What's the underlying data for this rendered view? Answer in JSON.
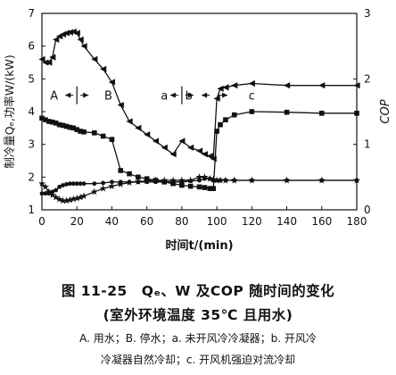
{
  "chart_data": {
    "type": "line",
    "x": [
      0,
      2,
      4,
      6,
      8,
      10,
      12,
      14,
      16,
      18,
      20,
      22,
      24,
      30,
      35,
      40,
      45,
      50,
      55,
      60,
      65,
      70,
      75,
      80,
      85,
      90,
      93,
      96,
      98,
      100,
      102,
      105,
      110,
      120,
      140,
      160,
      180
    ],
    "xlabel": "时间t/(min)",
    "ylabel_left": "制冷量Qₑ,功率W/(kW)",
    "ylabel_right": "COP",
    "xlim": [
      0,
      180
    ],
    "ylim_left": [
      1,
      7
    ],
    "ylim_right": [
      0,
      3
    ],
    "xticks": [
      "0",
      "20",
      "40",
      "60",
      "80",
      "100",
      "120",
      "140",
      "160",
      "180"
    ],
    "yticks_left": [
      "1",
      "2",
      "3",
      "4",
      "5",
      "6",
      "7"
    ],
    "yticks_right": [
      "0",
      "1",
      "2",
      "3"
    ],
    "series": [
      {
        "marker": "triangle-left",
        "axis": "right",
        "values": [
          2.3,
          2.25,
          2.25,
          2.33,
          2.6,
          2.65,
          2.68,
          2.7,
          2.71,
          2.72,
          2.7,
          2.6,
          2.5,
          2.3,
          2.15,
          1.95,
          1.6,
          1.35,
          1.25,
          1.15,
          1.05,
          0.95,
          0.85,
          1.05,
          0.95,
          0.9,
          0.85,
          0.82,
          0.78,
          1.7,
          1.85,
          1.87,
          1.9,
          1.93,
          1.9,
          1.9,
          1.9
        ]
      },
      {
        "marker": "square",
        "axis": "left",
        "values": [
          3.8,
          3.75,
          3.7,
          3.68,
          3.65,
          3.6,
          3.58,
          3.55,
          3.52,
          3.5,
          3.45,
          3.4,
          3.38,
          3.35,
          3.25,
          3.15,
          2.2,
          2.1,
          2.0,
          1.95,
          1.9,
          1.85,
          1.8,
          1.75,
          1.72,
          1.7,
          1.68,
          1.65,
          1.65,
          3.4,
          3.6,
          3.75,
          3.9,
          4.0,
          3.98,
          3.95,
          3.95
        ]
      },
      {
        "marker": "star",
        "axis": "left",
        "values": [
          1.8,
          1.7,
          1.55,
          1.45,
          1.38,
          1.32,
          1.28,
          1.28,
          1.3,
          1.33,
          1.35,
          1.38,
          1.42,
          1.55,
          1.65,
          1.72,
          1.78,
          1.83,
          1.86,
          1.88,
          1.9,
          1.9,
          1.9,
          1.9,
          1.9,
          2.0,
          2.0,
          1.95,
          1.92,
          1.9,
          1.9,
          1.9,
          1.9,
          1.9,
          1.9,
          1.9,
          1.9
        ]
      },
      {
        "marker": "circle",
        "axis": "left",
        "values": [
          1.5,
          1.5,
          1.5,
          1.55,
          1.6,
          1.7,
          1.75,
          1.78,
          1.8,
          1.8,
          1.8,
          1.8,
          1.8,
          1.8,
          1.82,
          1.85,
          1.85,
          1.85,
          1.85,
          1.85,
          1.85,
          1.85,
          1.85,
          1.85,
          1.88,
          1.9,
          1.95,
          1.95,
          1.9,
          1.9,
          1.9,
          1.9,
          1.9,
          1.9,
          1.9,
          1.9,
          1.9
        ]
      }
    ],
    "annotations": [
      {
        "text": "A",
        "x": 7,
        "y": 4.5,
        "axis": "left"
      },
      {
        "text": "B",
        "x": 38,
        "y": 4.5,
        "axis": "left"
      },
      {
        "text": "a",
        "x": 70,
        "y": 4.5,
        "axis": "left"
      },
      {
        "text": "b",
        "x": 84,
        "y": 4.5,
        "axis": "left"
      },
      {
        "text": "c",
        "x": 120,
        "y": 4.5,
        "axis": "left"
      }
    ],
    "phase_divider_x": [
      20,
      80,
      100
    ],
    "grid": false,
    "line_color": "#111111"
  },
  "caption": {
    "title": "图 11-25　Qₑ、W 及COP 随时间的变化",
    "subtitle": "(室外环境温度 35℃ 且用水)",
    "note_line1": "A. 用水；B. 停水；a. 未开风冷冷凝器；b. 开风冷",
    "note_line2": "冷凝器自然冷却；c. 开风机强迫对流冷却"
  }
}
